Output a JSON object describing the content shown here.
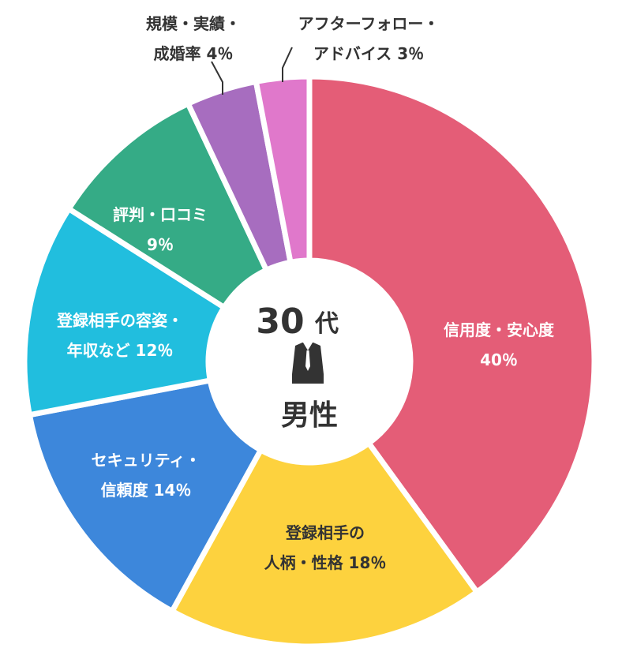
{
  "chart_data": {
    "type": "pie",
    "variant": "donut",
    "center_label": {
      "line1": "30",
      "line1_suffix": "代",
      "line2": "男性",
      "icon": "suit-icon"
    },
    "unit": "%",
    "slices": [
      {
        "name": "信用度・安心度",
        "value": 40,
        "lines": [
          "信用度・安心度",
          "40％"
        ],
        "color": "#e45d77",
        "text_color": "#ffffff"
      },
      {
        "name": "登録相手の人柄・性格",
        "value": 18,
        "lines": [
          "登録相手の",
          "人柄・性格 18％"
        ],
        "color": "#fdd23e",
        "text_color": "#333333"
      },
      {
        "name": "セキュリティ・信頼度",
        "value": 14,
        "lines": [
          "セキュリティ・",
          "信頼度 14％"
        ],
        "color": "#3d87db",
        "text_color": "#ffffff"
      },
      {
        "name": "登録相手の容姿・年収など",
        "value": 12,
        "lines": [
          "登録相手の容姿・",
          "年収など 12％"
        ],
        "color": "#21bede",
        "text_color": "#ffffff"
      },
      {
        "name": "評判・口コミ",
        "value": 9,
        "lines": [
          "評判・口コミ",
          "9％"
        ],
        "color": "#35ab86",
        "text_color": "#ffffff"
      },
      {
        "name": "規模・実績・成婚率",
        "value": 4,
        "lines": [
          "規模・実績・",
          "成婚率 4％"
        ],
        "color": "#a76dbf",
        "text_color": "#333333",
        "outside": true
      },
      {
        "name": "アフターフォロー・アドバイス",
        "value": 3,
        "lines": [
          "アフターフォロー・",
          "アドバイス 3％"
        ],
        "color": "#e078cb",
        "text_color": "#333333",
        "outside": true
      }
    ]
  }
}
